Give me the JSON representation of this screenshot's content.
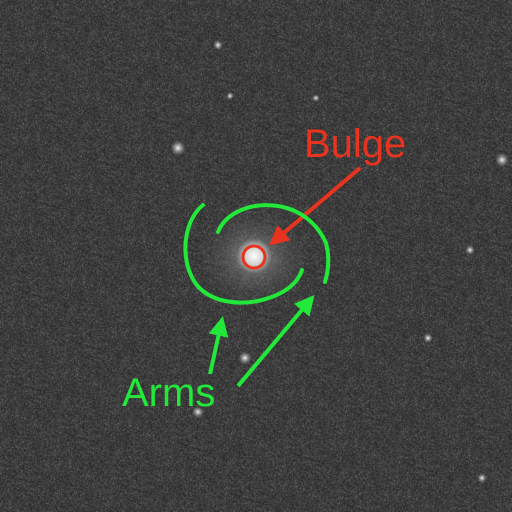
{
  "annotations": {
    "bulge_label": "Bulge",
    "arms_label": "Arms"
  },
  "colors": {
    "bulge": "#e8331f",
    "arms": "#22e83a",
    "sky": "#3b3b3b"
  }
}
